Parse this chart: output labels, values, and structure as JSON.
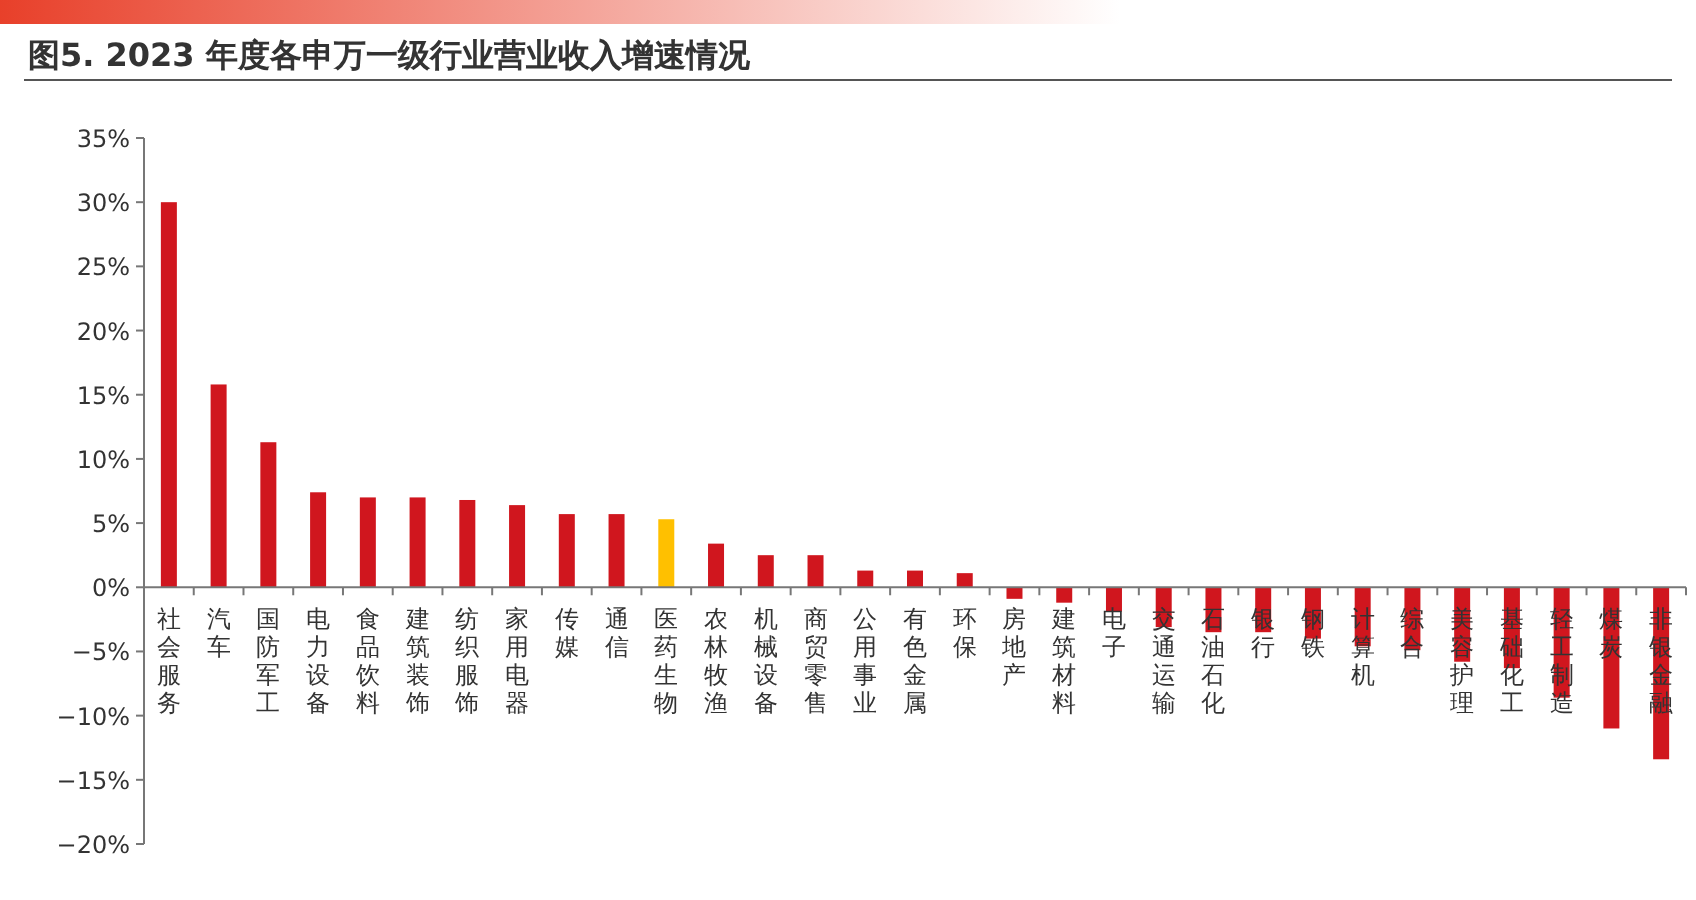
{
  "chart_data": {
    "type": "bar",
    "title": "图5. 2023 年度各申万一级行业营业收入增速情况",
    "categories": [
      "社会服务",
      "汽车",
      "国防军工",
      "电力设备",
      "食品饮料",
      "建筑装饰",
      "纺织服饰",
      "家用电器",
      "传媒",
      "通信",
      "医药生物",
      "农林牧渔",
      "机械设备",
      "商贸零售",
      "公用事业",
      "有色金属",
      "环保",
      "房地产",
      "建筑材料",
      "电子",
      "交通运输",
      "石油石化",
      "银行",
      "钢铁",
      "计算机",
      "综合",
      "美容护理",
      "基础化工",
      "轻工制造",
      "煤炭",
      "非银金融"
    ],
    "values": [
      30.0,
      15.8,
      11.3,
      7.4,
      7.0,
      7.0,
      6.8,
      6.4,
      5.7,
      5.7,
      5.3,
      3.4,
      2.5,
      2.5,
      1.3,
      1.3,
      1.1,
      -0.9,
      -1.2,
      -1.9,
      -3.1,
      -3.5,
      -3.5,
      -4.0,
      -4.6,
      -4.9,
      -5.8,
      -6.3,
      -8.6,
      -11.0,
      -13.4
    ],
    "colors": [
      "#d0161e",
      "#d0161e",
      "#d0161e",
      "#d0161e",
      "#d0161e",
      "#d0161e",
      "#d0161e",
      "#d0161e",
      "#d0161e",
      "#d0161e",
      "#ffc000",
      "#d0161e",
      "#d0161e",
      "#d0161e",
      "#d0161e",
      "#d0161e",
      "#d0161e",
      "#d0161e",
      "#d0161e",
      "#d0161e",
      "#d0161e",
      "#d0161e",
      "#d0161e",
      "#d0161e",
      "#d0161e",
      "#d0161e",
      "#d0161e",
      "#d0161e",
      "#d0161e",
      "#d0161e",
      "#d0161e"
    ],
    "ylim": [
      -20,
      35
    ],
    "yticks": [
      {
        "value": 35,
        "label": "35%"
      },
      {
        "value": 30,
        "label": "30%"
      },
      {
        "value": 25,
        "label": "25%"
      },
      {
        "value": 20,
        "label": "20%"
      },
      {
        "value": 15,
        "label": "15%"
      },
      {
        "value": 10,
        "label": "10%"
      },
      {
        "value": 5,
        "label": "5%"
      },
      {
        "value": 0,
        "label": "0%"
      },
      {
        "value": -5,
        "label": "−5%"
      },
      {
        "value": -10,
        "label": "−10%"
      },
      {
        "value": -15,
        "label": "−15%"
      },
      {
        "value": -20,
        "label": "−20%"
      }
    ]
  }
}
